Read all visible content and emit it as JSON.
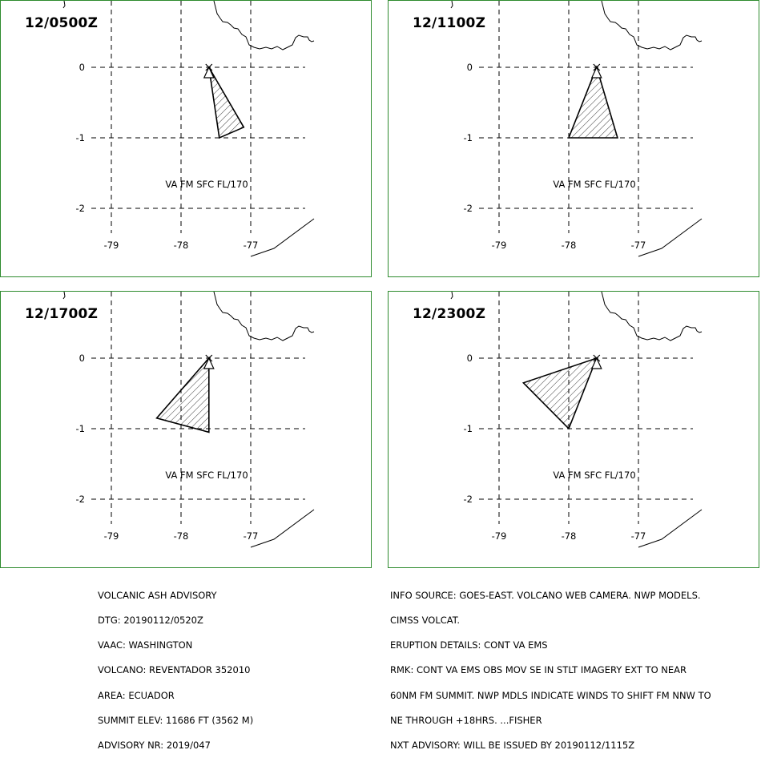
{
  "panels": [
    {
      "title": "12/0500Z",
      "label": "VA FM SFC FL/170",
      "polygon": [
        [
          -77.6,
          0.0
        ],
        [
          -77.1,
          -0.85
        ],
        [
          -77.45,
          -1.0
        ]
      ]
    },
    {
      "title": "12/1100Z",
      "label": "VA FM SFC FL/170",
      "polygon": [
        [
          -77.6,
          0.0
        ],
        [
          -77.3,
          -1.0
        ],
        [
          -78.0,
          -1.0
        ]
      ]
    },
    {
      "title": "12/1700Z",
      "label": "VA FM SFC FL/170",
      "polygon": [
        [
          -77.6,
          0.0
        ],
        [
          -77.6,
          -1.05
        ],
        [
          -78.35,
          -0.85
        ]
      ]
    },
    {
      "title": "12/2300Z",
      "label": "VA FM SFC FL/170",
      "polygon": [
        [
          -77.6,
          0.0
        ],
        [
          -78.0,
          -1.0
        ],
        [
          -78.65,
          -0.35
        ]
      ]
    }
  ],
  "axes": {
    "lon_ticks": [
      "-79",
      "-78",
      "-77"
    ],
    "lat_ticks": [
      "0",
      "-1",
      "-2"
    ]
  },
  "volcano": {
    "lon": -77.6,
    "lat": 0.0
  },
  "advisory_left": [
    "VOLCANIC ASH ADVISORY",
    "DTG: 20190112/0520Z",
    "VAAC: WASHINGTON",
    "VOLCANO: REVENTADOR 352010",
    "AREA: ECUADOR",
    "SUMMIT ELEV: 11686 FT (3562 M)",
    "ADVISORY NR: 2019/047"
  ],
  "advisory_right": [
    "INFO SOURCE: GOES-EAST. VOLCANO WEB CAMERA. NWP MODELS.",
    "CIMSS VOLCAT.",
    "ERUPTION DETAILS: CONT VA EMS",
    "RMK: CONT VA EMS OBS MOV SE IN STLT IMAGERY EXT TO NEAR",
    "60NM FM SUMMIT. NWP MDLS INDICATE WINDS TO SHIFT FM NNW TO",
    "NE THROUGH +18HRS. ...FISHER",
    "NXT ADVISORY: WILL BE ISSUED BY 20190112/1115Z"
  ],
  "colors": {
    "frame": "#2e8b2e",
    "lines": "#000000"
  }
}
